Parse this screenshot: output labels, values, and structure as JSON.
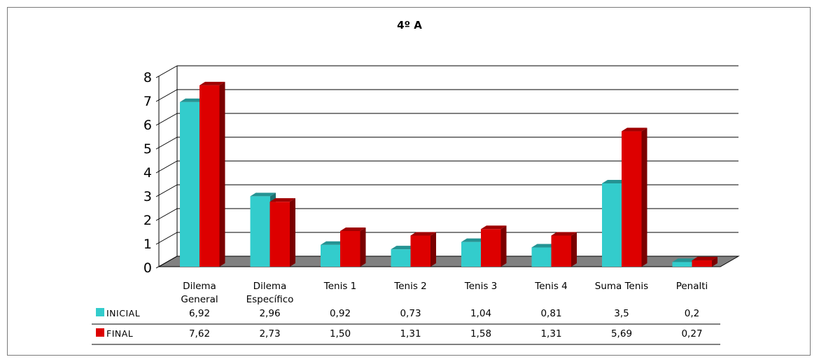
{
  "chart_data": {
    "type": "bar",
    "title": "4º A",
    "xlabel": "",
    "ylabel": "",
    "ylim": [
      0,
      8
    ],
    "yticks": [
      "0",
      "1",
      "2",
      "3",
      "4",
      "5",
      "6",
      "7",
      "8"
    ],
    "grid": true,
    "legend": "data-table",
    "categories": [
      [
        "Dilema",
        "General"
      ],
      [
        "Dilema",
        "Específico"
      ],
      [
        "Tenis 1"
      ],
      [
        "Tenis 2"
      ],
      [
        "Tenis 3"
      ],
      [
        "Tenis 4"
      ],
      [
        "Suma Tenis"
      ],
      [
        "Penalti"
      ]
    ],
    "series": [
      {
        "name": "INICIAL",
        "color": "#33cccc",
        "values": [
          6.92,
          2.96,
          0.92,
          0.73,
          1.04,
          0.81,
          3.5,
          0.2
        ],
        "labels": [
          "6,92",
          "2,96",
          "0,92",
          "0,73",
          "1,04",
          "0,81",
          "3,5",
          "0,2"
        ]
      },
      {
        "name": "FINAL",
        "color": "#dd0000",
        "values": [
          7.62,
          2.73,
          1.5,
          1.31,
          1.58,
          1.31,
          5.69,
          0.27
        ],
        "labels": [
          "7,62",
          "2,73",
          "1,50",
          "1,31",
          "1,58",
          "1,31",
          "5,69",
          "0,27"
        ]
      }
    ]
  }
}
